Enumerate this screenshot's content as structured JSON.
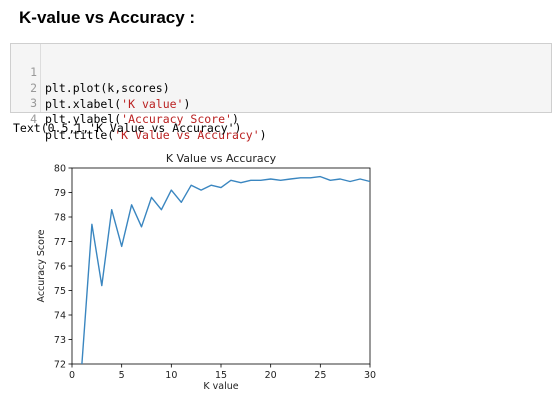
{
  "heading": "K-value vs Accuracy :",
  "code": [
    {
      "n": "1",
      "pre": "plt.plot(k,scores)",
      "str": "",
      "post": ""
    },
    {
      "n": "2",
      "pre": "plt.xlabel(",
      "str": "'K value'",
      "post": ")"
    },
    {
      "n": "3",
      "pre": "plt.ylabel(",
      "str": "'Accuracy Score'",
      "post": ")"
    },
    {
      "n": "4",
      "pre": "plt.title(",
      "str": "'K Value vs Accuracy'",
      "post": ")"
    }
  ],
  "output_text": "Text(0.5,1,'K Value vs Accuracy')",
  "colors": {
    "line": "#3a86c0",
    "string": "#ba2121"
  },
  "chart_data": {
    "type": "line",
    "title": "K Value vs Accuracy",
    "xlabel": "K value",
    "ylabel": "Accuracy Score",
    "xlim": [
      0,
      30
    ],
    "ylim": [
      72,
      80
    ],
    "xticks": [
      0,
      5,
      10,
      15,
      20,
      25,
      30
    ],
    "yticks": [
      72,
      73,
      74,
      75,
      76,
      77,
      78,
      79,
      80
    ],
    "series": [
      {
        "x": [
          1,
          2,
          3,
          4,
          5,
          6,
          7,
          8,
          9,
          10,
          11,
          12,
          13,
          14,
          15,
          16,
          17,
          18,
          19,
          20,
          21,
          22,
          23,
          24,
          25,
          26,
          27,
          28,
          29,
          30
        ],
        "y": [
          72.0,
          77.7,
          75.2,
          78.3,
          76.8,
          78.5,
          77.6,
          78.8,
          78.3,
          79.1,
          78.6,
          79.3,
          79.1,
          79.3,
          79.2,
          79.5,
          79.4,
          79.5,
          79.5,
          79.55,
          79.5,
          79.55,
          79.6,
          79.6,
          79.65,
          79.5,
          79.55,
          79.45,
          79.55,
          79.45
        ]
      }
    ]
  }
}
